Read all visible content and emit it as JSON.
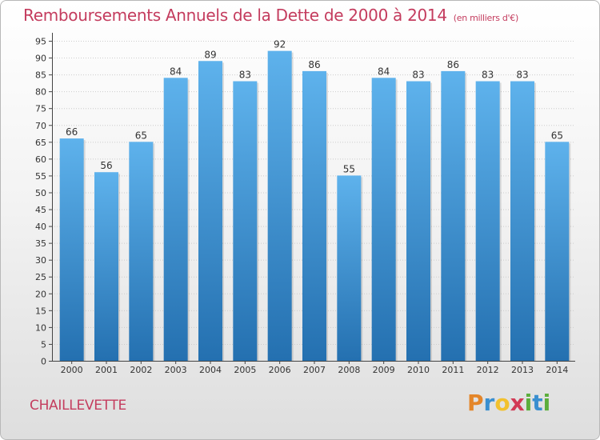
{
  "header": {
    "title": "Remboursements Annuels de la Dette de 2000 à 2014",
    "subtitle": "(en milliers d'€)"
  },
  "footer": {
    "commune": "CHAILLEVETTE",
    "logo_letters": [
      "P",
      "r",
      "o",
      "x",
      "i",
      "t",
      "i"
    ],
    "logo_colors": [
      "#e4862a",
      "#3a8fd0",
      "#f2c12e",
      "#d23a55",
      "#5cae3c",
      "#3a8fd0",
      "#5cae3c"
    ]
  },
  "colors": {
    "accent": "#c43c5e",
    "bar_top": "#5eb2ec",
    "bar_bottom": "#2470b0",
    "axis": "#444444",
    "grid": "#cccccc"
  },
  "chart_data": {
    "type": "bar",
    "title": "Remboursements Annuels de la Dette de 2000 à 2014",
    "xlabel": "",
    "ylabel": "",
    "categories": [
      "2000",
      "2001",
      "2002",
      "2003",
      "2004",
      "2005",
      "2006",
      "2007",
      "2008",
      "2009",
      "2010",
      "2011",
      "2012",
      "2013",
      "2014"
    ],
    "values": [
      66,
      56,
      65,
      84,
      89,
      83,
      92,
      86,
      55,
      84,
      83,
      86,
      83,
      83,
      65
    ],
    "ylim": [
      0,
      95
    ],
    "yticks": [
      0,
      5,
      10,
      15,
      20,
      25,
      30,
      35,
      40,
      45,
      50,
      55,
      60,
      65,
      70,
      75,
      80,
      85,
      90,
      95
    ],
    "grid": true,
    "data_labels": true
  }
}
